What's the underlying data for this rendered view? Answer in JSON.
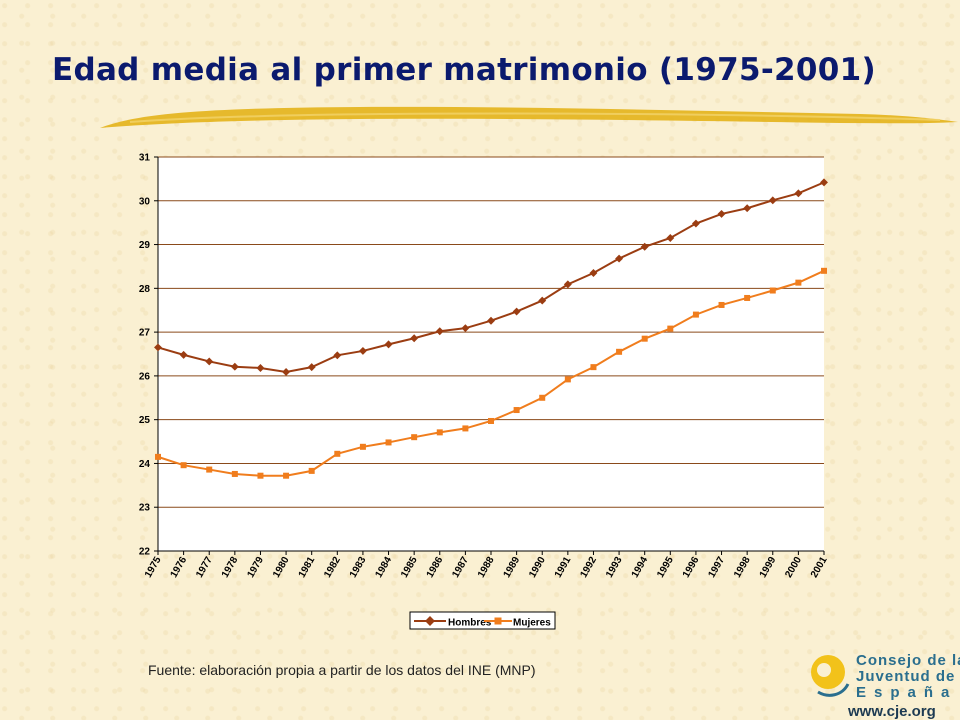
{
  "page": {
    "title": "Edad media al primer matrimonio (1975-2001)",
    "source": "Fuente: elaboración propia a partir de los datos del INE (MNP)"
  },
  "logo": {
    "line1": "Consejo de la",
    "line2": "Juventud de",
    "line3": "España",
    "url": "www.cje.org"
  },
  "colors": {
    "hombres": "#9b3d12",
    "mujeres": "#f07d1d",
    "plot_bg": "#ffffff",
    "gridline": "#8a4a1a",
    "title": "#0b1a6e",
    "brush": "#e3b21a"
  },
  "chart_data": {
    "type": "line",
    "title": "",
    "xlabel": "",
    "ylabel": "",
    "ylim": [
      22,
      31
    ],
    "yticks": [
      22,
      23,
      24,
      25,
      26,
      27,
      28,
      29,
      30,
      31
    ],
    "grid": true,
    "legend_position": "bottom",
    "categories": [
      "1975",
      "1976",
      "1977",
      "1978",
      "1979",
      "1980",
      "1981",
      "1982",
      "1983",
      "1984",
      "1985",
      "1986",
      "1987",
      "1988",
      "1989",
      "1990",
      "1991",
      "1992",
      "1993",
      "1994",
      "1995",
      "1996",
      "1997",
      "1998",
      "1999",
      "2000",
      "2001"
    ],
    "series": [
      {
        "name": "Hombres",
        "color": "#9b3d12",
        "marker": "diamond",
        "values": [
          26.65,
          26.48,
          26.33,
          26.21,
          26.18,
          26.09,
          26.2,
          26.47,
          26.57,
          26.72,
          26.86,
          27.02,
          27.09,
          27.26,
          27.47,
          27.72,
          28.09,
          28.35,
          28.68,
          28.95,
          29.15,
          29.48,
          29.7,
          29.83,
          30.01,
          30.17,
          30.42
        ]
      },
      {
        "name": "Mujeres",
        "color": "#f07d1d",
        "marker": "square",
        "values": [
          24.15,
          23.96,
          23.86,
          23.76,
          23.72,
          23.72,
          23.83,
          24.22,
          24.38,
          24.48,
          24.6,
          24.71,
          24.8,
          24.97,
          25.22,
          25.5,
          25.92,
          26.2,
          26.55,
          26.85,
          27.08,
          27.4,
          27.62,
          27.78,
          27.95,
          28.13,
          28.4
        ]
      }
    ]
  }
}
